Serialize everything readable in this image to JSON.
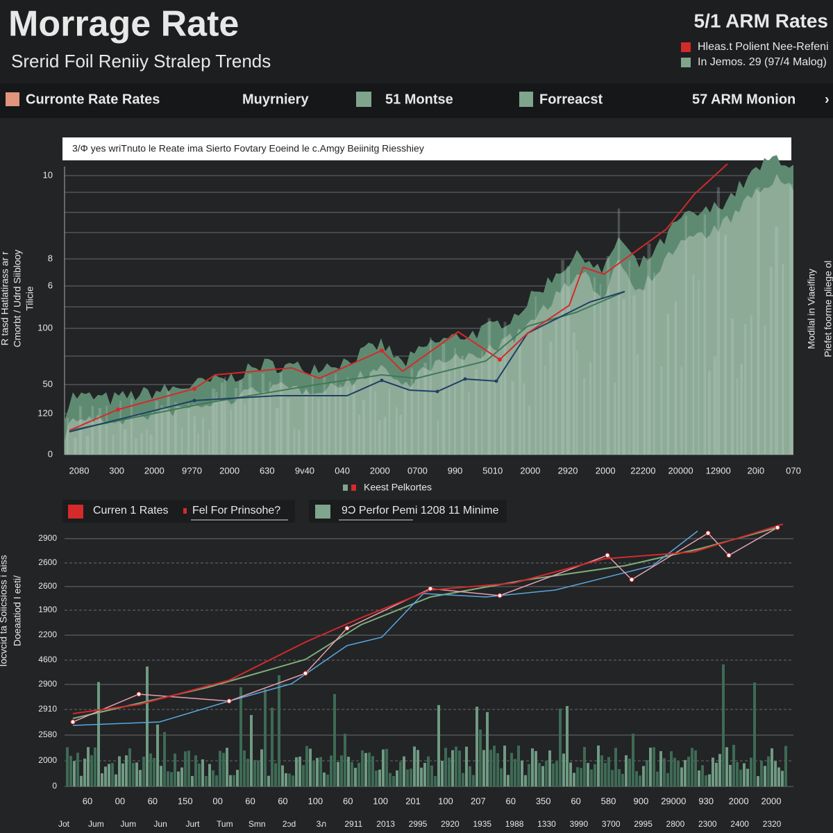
{
  "header": {
    "title": "Morrage Rate",
    "subtitle": "Srerid Foil Reniiy Stralep Trends",
    "right_title": "5/1 ARM Rates",
    "legend": [
      "Hleas.t Polient Nee-Refeni",
      "In Jemos. 29 (97/4 Malog)"
    ]
  },
  "tabs": [
    "Curronte Rate Rates",
    "Muyrniery",
    "51 Montse",
    "Forreacst",
    "57 ARM Monion",
    "›"
  ],
  "top_chart": {
    "banner": "3/Φ yes wriTnuto le Reate ima Sierto Fovtary Eoeind le c.Amgy Beiinitg Riesshiey",
    "y_axis_labels": [
      "10",
      "8",
      "6",
      "100",
      "50",
      "120",
      "0"
    ],
    "x_axis_labels": [
      "2080",
      "300",
      "2000",
      "9?70",
      "2000",
      "630",
      "9v40",
      "040",
      "2000",
      "0700",
      "990",
      "5010",
      "2000",
      "2920",
      "2000",
      "22200",
      "20000",
      "12900",
      "20i0",
      "070"
    ],
    "left_label": [
      "R tasd Hatlatirass ar r",
      "Cmorbt / Udrd Siiblooy",
      "Tilicie"
    ],
    "right_label": [
      "Modilal in Viaeifiny",
      "Piefet foorme pliege ol"
    ],
    "legend": "Keest Pelkortes"
  },
  "bottom_legend": [
    "Curren 1 Rates",
    "Fel For Prinsohe?",
    "9Ͻ Perfor Pemi 1208 11 Minime"
  ],
  "bottom_chart": {
    "y_axis_labels": [
      "2900",
      "2600",
      "2600",
      "1900",
      "2200",
      "4600",
      "2900",
      "2910",
      "2580",
      "2000",
      "0"
    ],
    "x_axis_labels": [
      "60",
      "00",
      "60",
      "150",
      "00",
      "60",
      "60",
      "100",
      "60",
      "100",
      "201",
      "100",
      "207",
      "60",
      "350",
      "60",
      "580",
      "900",
      "29000",
      "930",
      "2000",
      "2000"
    ],
    "x_axis_labels_2": [
      "Jot",
      "Jum",
      "Jum",
      "Jun",
      "Jurt",
      "Tum",
      "Smn",
      "2ɔd",
      "3ภ",
      "2911",
      "2013",
      "2995",
      "2920",
      "1935",
      "1988",
      "1330",
      "3990",
      "3700",
      "2995",
      "2800",
      "2300",
      "2400",
      "2320"
    ],
    "left_label": [
      "Iocvcid ta Soiicsioss i aiss",
      "Doeaatiod I eeti/"
    ]
  }
}
